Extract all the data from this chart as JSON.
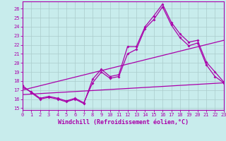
{
  "xlabel": "Windchill (Refroidissement éolien,°C)",
  "background_color": "#c8ecec",
  "line_color": "#aa00aa",
  "grid_color": "#aacccc",
  "x_ticks": [
    0,
    1,
    2,
    3,
    4,
    5,
    6,
    7,
    8,
    9,
    10,
    11,
    12,
    13,
    14,
    15,
    16,
    17,
    18,
    19,
    20,
    21,
    22,
    23
  ],
  "y_ticks": [
    15,
    16,
    17,
    18,
    19,
    20,
    21,
    22,
    23,
    24,
    25,
    26
  ],
  "xlim": [
    0,
    23
  ],
  "ylim": [
    14.8,
    26.8
  ],
  "line1_x": [
    0,
    1,
    2,
    3,
    4,
    5,
    6,
    7,
    8,
    9,
    10,
    11,
    12,
    13,
    14,
    15,
    16,
    17,
    18,
    19,
    20,
    21,
    22,
    23
  ],
  "line1_y": [
    17.5,
    16.7,
    16.0,
    16.2,
    16.0,
    15.7,
    16.0,
    15.5,
    18.2,
    19.3,
    18.5,
    18.7,
    21.8,
    21.8,
    24.0,
    25.2,
    26.5,
    24.5,
    23.2,
    22.3,
    22.5,
    20.1,
    19.0,
    17.9
  ],
  "line2_x": [
    0,
    1,
    2,
    3,
    4,
    5,
    6,
    7,
    8,
    9,
    10,
    11,
    12,
    13,
    14,
    15,
    16,
    17,
    18,
    19,
    20,
    21,
    22,
    23
  ],
  "line2_y": [
    17.3,
    16.8,
    16.1,
    16.3,
    16.1,
    15.8,
    16.1,
    15.6,
    17.8,
    19.0,
    18.3,
    18.5,
    21.0,
    21.5,
    23.8,
    24.8,
    26.2,
    24.2,
    22.8,
    21.9,
    22.2,
    19.8,
    18.5,
    17.8
  ],
  "line3_x": [
    0,
    23
  ],
  "line3_y": [
    17.0,
    22.5
  ],
  "line4_x": [
    0,
    23
  ],
  "line4_y": [
    16.5,
    17.8
  ]
}
